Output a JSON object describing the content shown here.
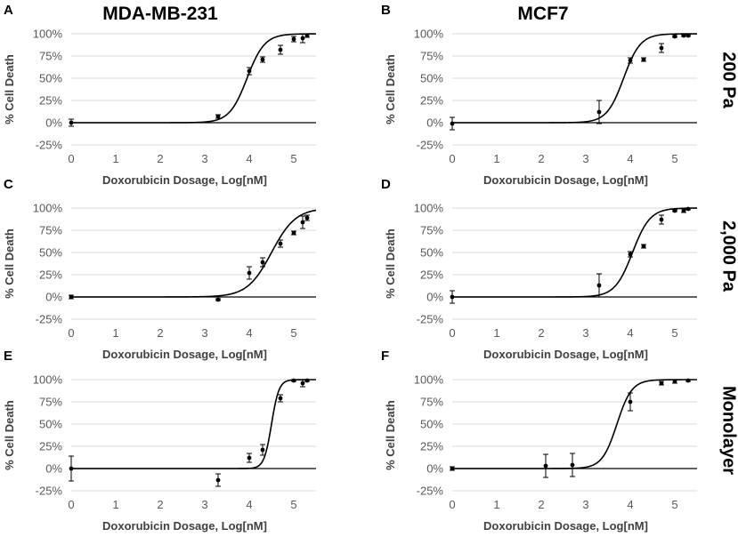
{
  "figure": {
    "column_titles": [
      "MDA-MB-231",
      "MCF7"
    ],
    "row_labels": [
      "200 Pa",
      "2,000 Pa",
      "Monolayer"
    ]
  },
  "chart_data": [
    {
      "panel": "A",
      "type": "scatter",
      "cell_line": "MDA-MB-231",
      "condition": "200 Pa",
      "xlabel": "Doxorubicin Dosage, Log[nM]",
      "ylabel": "% Cell Death",
      "xlim": [
        0,
        5.5
      ],
      "ylim": [
        -25,
        100
      ],
      "xticks": [
        "0",
        "1",
        "2",
        "3",
        "4",
        "5"
      ],
      "yticks": [
        "-25%",
        "0%",
        "25%",
        "50%",
        "75%",
        "100%"
      ],
      "fit": {
        "ec50_log": 3.95,
        "slope": 2.2
      },
      "points": [
        {
          "x": 0,
          "y": 0,
          "err": 4
        },
        {
          "x": 3.3,
          "y": 7,
          "err": 2
        },
        {
          "x": 4.0,
          "y": 58,
          "err": 4
        },
        {
          "x": 4.3,
          "y": 71,
          "err": 3
        },
        {
          "x": 4.7,
          "y": 82,
          "err": 5
        },
        {
          "x": 5.0,
          "y": 94,
          "err": 3
        },
        {
          "x": 5.2,
          "y": 95,
          "err": 5
        },
        {
          "x": 5.3,
          "y": 98,
          "err": 2
        }
      ]
    },
    {
      "panel": "B",
      "type": "scatter",
      "cell_line": "MCF7",
      "condition": "200 Pa",
      "xlabel": "Doxorubicin Dosage, Log[nM]",
      "ylabel": "% Cell Death",
      "xlim": [
        0,
        5.5
      ],
      "ylim": [
        -25,
        100
      ],
      "xticks": [
        "0",
        "1",
        "2",
        "3",
        "4",
        "5"
      ],
      "yticks": [
        "-25%",
        "0%",
        "25%",
        "50%",
        "75%",
        "100%"
      ],
      "fit": {
        "ec50_log": 3.85,
        "slope": 2.3
      },
      "points": [
        {
          "x": 0,
          "y": -1,
          "err": 7
        },
        {
          "x": 3.3,
          "y": 12,
          "err": 13
        },
        {
          "x": 4.0,
          "y": 70,
          "err": 3
        },
        {
          "x": 4.3,
          "y": 71,
          "err": 2
        },
        {
          "x": 4.7,
          "y": 84,
          "err": 5
        },
        {
          "x": 5.0,
          "y": 97,
          "err": 1
        },
        {
          "x": 5.2,
          "y": 98,
          "err": 1
        },
        {
          "x": 5.3,
          "y": 98,
          "err": 1
        }
      ]
    },
    {
      "panel": "C",
      "type": "scatter",
      "cell_line": "MDA-MB-231",
      "condition": "2,000 Pa",
      "xlabel": "Doxorubicin Dosage, Log[nM]",
      "ylabel": "% Cell Death",
      "xlim": [
        0,
        5.5
      ],
      "ylim": [
        -25,
        100
      ],
      "xticks": [
        "0",
        "1",
        "2",
        "3",
        "4",
        "5"
      ],
      "yticks": [
        "-25%",
        "0%",
        "25%",
        "50%",
        "75%",
        "100%"
      ],
      "fit": {
        "ec50_log": 4.5,
        "slope": 1.6
      },
      "points": [
        {
          "x": 0,
          "y": 0,
          "err": 2
        },
        {
          "x": 3.3,
          "y": -3,
          "err": 1
        },
        {
          "x": 4.0,
          "y": 27,
          "err": 7
        },
        {
          "x": 4.3,
          "y": 39,
          "err": 5
        },
        {
          "x": 4.7,
          "y": 60,
          "err": 4
        },
        {
          "x": 5.0,
          "y": 72,
          "err": 2
        },
        {
          "x": 5.2,
          "y": 84,
          "err": 7
        },
        {
          "x": 5.3,
          "y": 89,
          "err": 3
        }
      ]
    },
    {
      "panel": "D",
      "type": "scatter",
      "cell_line": "MCF7",
      "condition": "2,000 Pa",
      "xlabel": "Doxorubicin Dosage, Log[nM]",
      "ylabel": "% Cell Death",
      "xlim": [
        0,
        5.5
      ],
      "ylim": [
        -25,
        100
      ],
      "xticks": [
        "0",
        "1",
        "2",
        "3",
        "4",
        "5"
      ],
      "yticks": [
        "-25%",
        "0%",
        "25%",
        "50%",
        "75%",
        "100%"
      ],
      "fit": {
        "ec50_log": 4.05,
        "slope": 2.2
      },
      "points": [
        {
          "x": 0,
          "y": 0,
          "err": 7
        },
        {
          "x": 3.3,
          "y": 13,
          "err": 13
        },
        {
          "x": 4.0,
          "y": 48,
          "err": 3
        },
        {
          "x": 4.3,
          "y": 57,
          "err": 2
        },
        {
          "x": 4.7,
          "y": 87,
          "err": 5
        },
        {
          "x": 5.0,
          "y": 97,
          "err": 1
        },
        {
          "x": 5.2,
          "y": 97,
          "err": 2
        },
        {
          "x": 5.3,
          "y": 99,
          "err": 1
        }
      ]
    },
    {
      "panel": "E",
      "type": "scatter",
      "cell_line": "MDA-MB-231",
      "condition": "Monolayer",
      "xlabel": "Doxorubicin Dosage, Log[nM]",
      "ylabel": "% Cell Death",
      "xlim": [
        0,
        5.5
      ],
      "ylim": [
        -25,
        100
      ],
      "xticks": [
        "0",
        "1",
        "2",
        "3",
        "4",
        "5"
      ],
      "yticks": [
        "-25%",
        "0%",
        "25%",
        "50%",
        "75%",
        "100%"
      ],
      "fit": {
        "ec50_log": 4.5,
        "slope": 5.2
      },
      "points": [
        {
          "x": 0,
          "y": 0,
          "err": 14
        },
        {
          "x": 3.3,
          "y": -13,
          "err": 7
        },
        {
          "x": 4.0,
          "y": 12,
          "err": 5
        },
        {
          "x": 4.3,
          "y": 21,
          "err": 6
        },
        {
          "x": 4.7,
          "y": 79,
          "err": 4
        },
        {
          "x": 5.0,
          "y": 99,
          "err": 1
        },
        {
          "x": 5.2,
          "y": 96,
          "err": 4
        },
        {
          "x": 5.3,
          "y": 99,
          "err": 1
        }
      ]
    },
    {
      "panel": "F",
      "type": "scatter",
      "cell_line": "MCF7",
      "condition": "Monolayer",
      "xlabel": "Doxorubicin Dosage, Log[nM]",
      "ylabel": "% Cell Death",
      "xlim": [
        0,
        5.5
      ],
      "ylim": [
        -25,
        100
      ],
      "xticks": [
        "0",
        "1",
        "2",
        "3",
        "4",
        "5"
      ],
      "yticks": [
        "-25%",
        "0%",
        "25%",
        "50%",
        "75%",
        "100%"
      ],
      "fit": {
        "ec50_log": 3.7,
        "slope": 2.6
      },
      "points": [
        {
          "x": 0,
          "y": 0,
          "err": 2
        },
        {
          "x": 2.1,
          "y": 3,
          "err": 13
        },
        {
          "x": 2.7,
          "y": 4,
          "err": 13
        },
        {
          "x": 4.0,
          "y": 75,
          "err": 10
        },
        {
          "x": 4.7,
          "y": 96,
          "err": 2
        },
        {
          "x": 5.0,
          "y": 98,
          "err": 2
        },
        {
          "x": 5.3,
          "y": 99,
          "err": 1
        }
      ]
    }
  ]
}
